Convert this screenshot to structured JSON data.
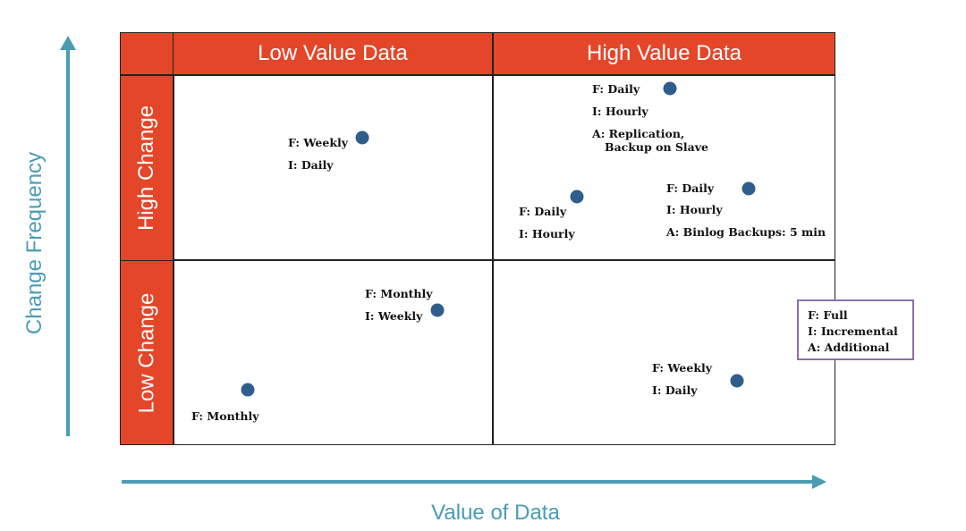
{
  "axes": {
    "y_label": "Change Frequency",
    "x_label": "Value of Data"
  },
  "columns": {
    "low": "Low Value Data",
    "high": "High Value Data"
  },
  "rows": {
    "high": "High Change",
    "low": "Low Change"
  },
  "labels": {
    "lv_hc": [
      "F: Weekly",
      "I: Daily"
    ],
    "lv_lc_a": [
      "F: Monthly",
      "I: Weekly"
    ],
    "lv_lc_b": [
      "F: Monthly"
    ],
    "hv_hc_top": [
      "F: Daily",
      "I: Hourly",
      "A: Replication,",
      "Backup on Slave"
    ],
    "hv_hc_left": [
      "F: Daily",
      "I: Hourly"
    ],
    "hv_hc_right": [
      "F: Daily",
      "I: Hourly",
      "A: Binlog Backups: 5 min"
    ],
    "hv_lc": [
      "F: Weekly",
      "I: Daily"
    ]
  },
  "legend": [
    "F: Full",
    "I: Incremental",
    "A: Additional"
  ],
  "colors": {
    "header": "#e4462a",
    "axis": "#4a9cb4",
    "dot": "#2f5d8c",
    "legend_border": "#8a6fa8"
  }
}
